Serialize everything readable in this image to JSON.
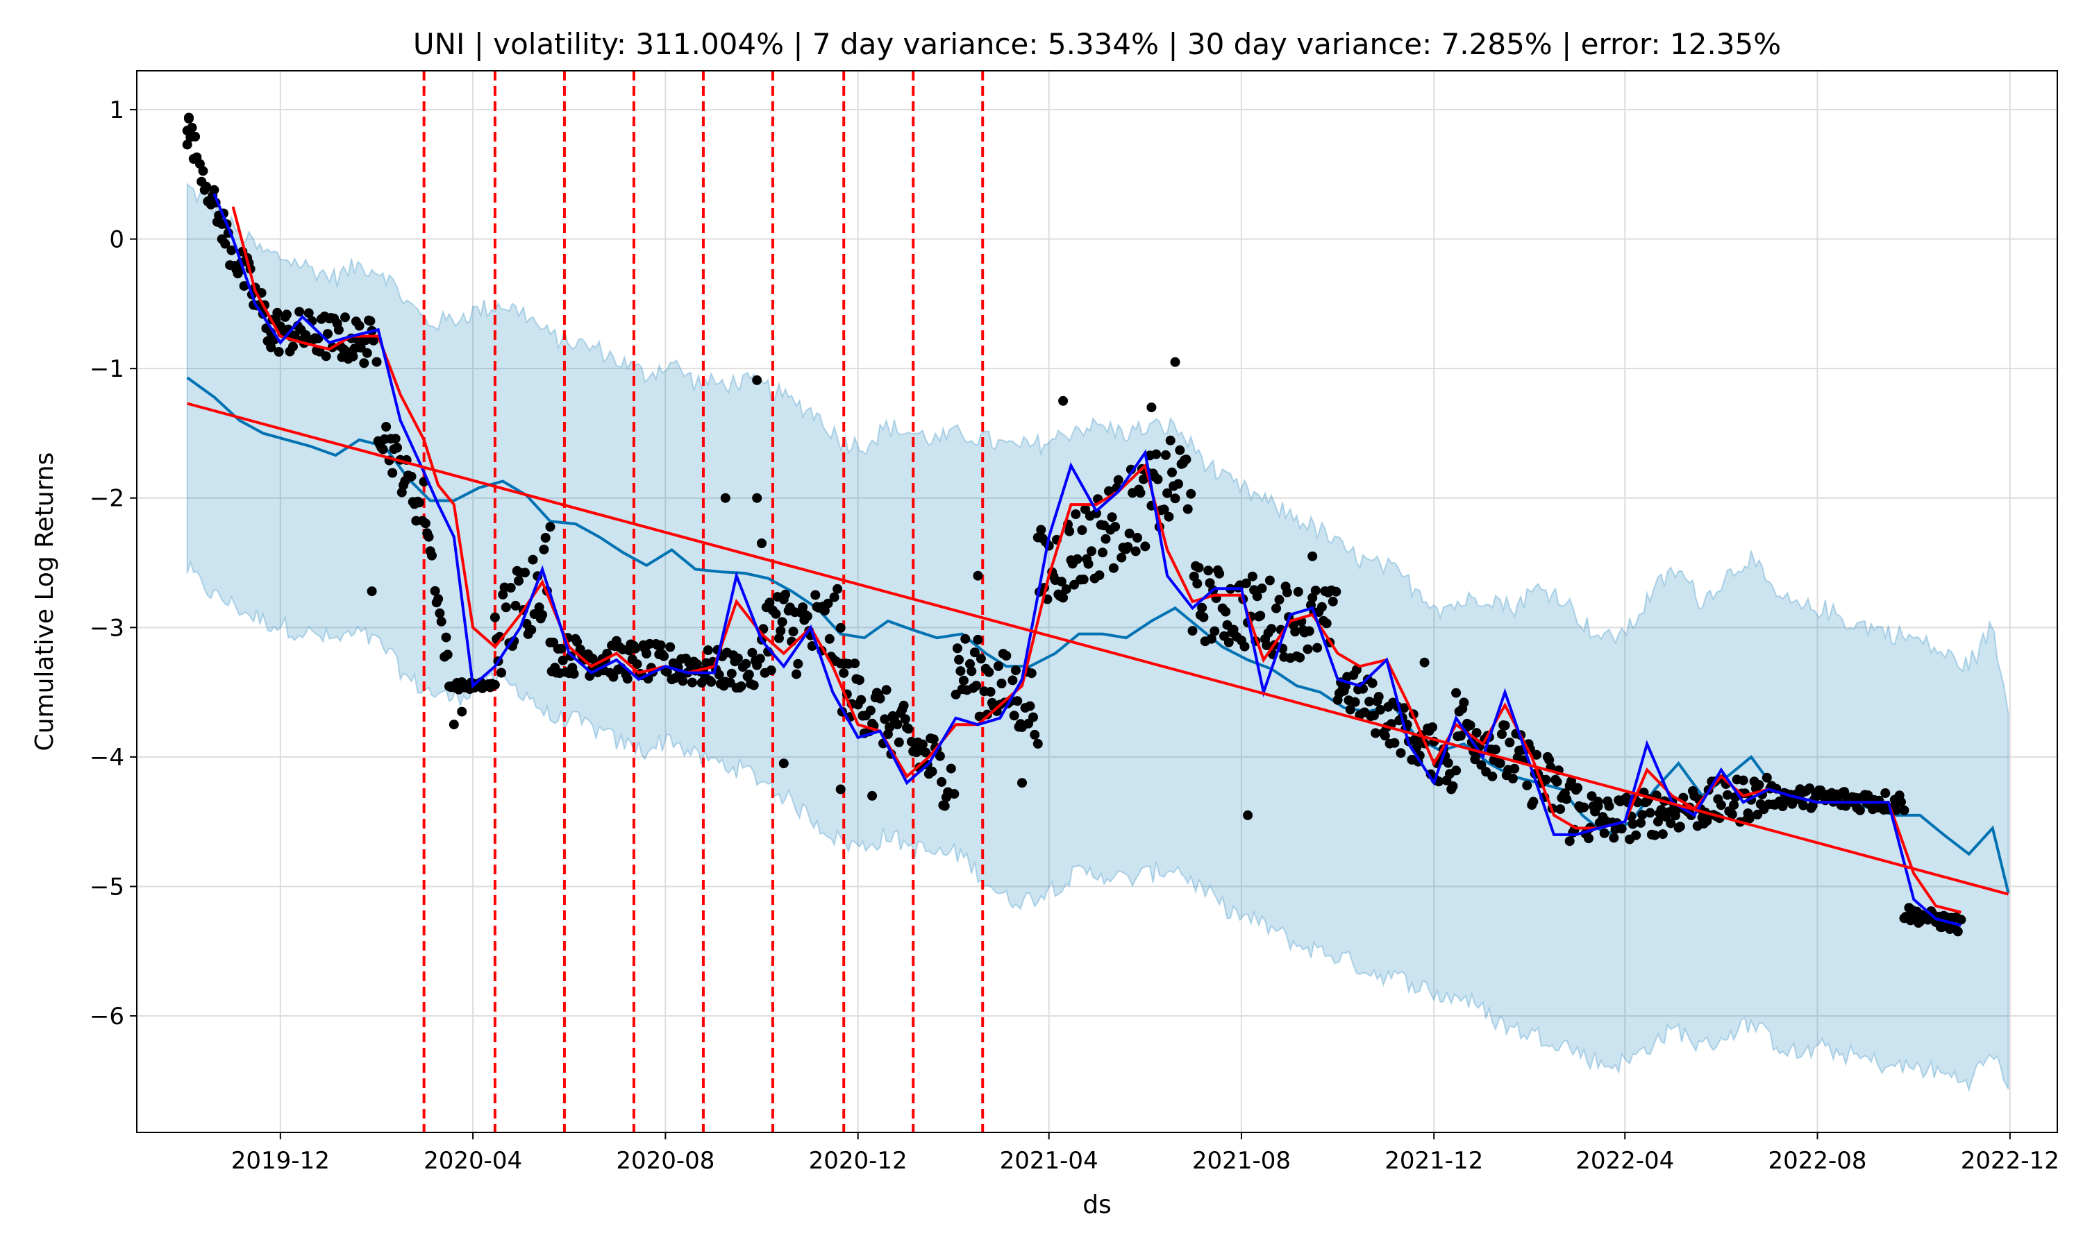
{
  "chart_data": {
    "type": "line",
    "title": "UNI | volatility: 311.004% | 7 day variance: 5.334% | 30 day variance: 7.285% | error: 12.35%",
    "xlabel": "ds",
    "ylabel": "Cumulative Log Returns",
    "xlim": [
      "2019-09-01",
      "2022-12-31"
    ],
    "ylim": [
      -6.9,
      1.3
    ],
    "x_ticks": [
      "2019-12",
      "2020-04",
      "2020-08",
      "2020-12",
      "2021-04",
      "2021-08",
      "2021-12",
      "2022-04",
      "2022-08",
      "2022-12"
    ],
    "y_ticks": [
      {
        "value": 1,
        "label": "1"
      },
      {
        "value": 0,
        "label": "0"
      },
      {
        "value": -1,
        "label": "−1"
      },
      {
        "value": -2,
        "label": "−2"
      },
      {
        "value": -3,
        "label": "−3"
      },
      {
        "value": -4,
        "label": "−4"
      },
      {
        "value": -5,
        "label": "−5"
      },
      {
        "value": -6,
        "label": "−6"
      }
    ],
    "grid": true,
    "colors": {
      "observed": "#000000",
      "forecast": "#0072B2",
      "uncertainty": "#0072B2",
      "trend": "#ff0000",
      "short_ma": "#0000ff",
      "long_ma": "#ff0000",
      "changepoint": "#ff0000",
      "grid": "#dddddd"
    },
    "changepoints": [
      "2020-03-01",
      "2020-04-15",
      "2020-05-29",
      "2020-07-12",
      "2020-08-25",
      "2020-10-08",
      "2020-11-22",
      "2021-01-05",
      "2021-02-18"
    ],
    "trend": {
      "x": [
        "2019-10-03",
        "2022-11-30"
      ],
      "y": [
        -1.27,
        -5.06
      ]
    },
    "forecast": {
      "x": [
        "2019-10-03",
        "2019-10-20",
        "2019-11-05",
        "2019-11-20",
        "2019-12-05",
        "2019-12-20",
        "2020-01-05",
        "2020-01-20",
        "2020-02-05",
        "2020-02-20",
        "2020-03-05",
        "2020-03-20",
        "2020-04-05",
        "2020-04-20",
        "2020-05-05",
        "2020-05-20",
        "2020-06-05",
        "2020-06-20",
        "2020-07-05",
        "2020-07-20",
        "2020-08-05",
        "2020-08-20",
        "2020-09-05",
        "2020-09-20",
        "2020-10-05",
        "2020-10-20",
        "2020-11-05",
        "2020-11-20",
        "2020-12-05",
        "2020-12-20",
        "2021-01-05",
        "2021-01-20",
        "2021-02-05",
        "2021-02-20",
        "2021-03-05",
        "2021-03-20",
        "2021-04-05",
        "2021-04-20",
        "2021-05-05",
        "2021-05-20",
        "2021-06-05",
        "2021-06-20",
        "2021-07-05",
        "2021-07-20",
        "2021-08-05",
        "2021-08-20",
        "2021-09-05",
        "2021-09-20",
        "2021-10-05",
        "2021-10-20",
        "2021-11-05",
        "2021-11-20",
        "2021-12-05",
        "2021-12-20",
        "2022-01-05",
        "2022-01-20",
        "2022-02-05",
        "2022-02-20",
        "2022-03-05",
        "2022-03-20",
        "2022-04-05",
        "2022-04-20",
        "2022-05-05",
        "2022-05-20",
        "2022-06-05",
        "2022-06-20",
        "2022-07-05",
        "2022-07-20",
        "2022-08-05",
        "2022-08-20",
        "2022-09-05",
        "2022-09-20",
        "2022-10-05",
        "2022-10-20",
        "2022-11-05",
        "2022-11-20",
        "2022-11-30"
      ],
      "y": [
        -1.07,
        -1.22,
        -1.4,
        -1.5,
        -1.55,
        -1.6,
        -1.67,
        -1.55,
        -1.6,
        -1.85,
        -2.02,
        -2.02,
        -1.92,
        -1.87,
        -1.98,
        -2.18,
        -2.2,
        -2.3,
        -2.42,
        -2.52,
        -2.4,
        -2.55,
        -2.57,
        -2.58,
        -2.62,
        -2.72,
        -2.85,
        -3.05,
        -3.08,
        -2.95,
        -3.02,
        -3.08,
        -3.05,
        -3.2,
        -3.3,
        -3.3,
        -3.2,
        -3.05,
        -3.05,
        -3.08,
        -2.95,
        -2.85,
        -3.0,
        -3.15,
        -3.25,
        -3.32,
        -3.45,
        -3.5,
        -3.62,
        -3.65,
        -3.6,
        -3.85,
        -3.95,
        -3.9,
        -4.05,
        -4.15,
        -4.2,
        -4.25,
        -4.45,
        -4.6,
        -4.5,
        -4.25,
        -4.05,
        -4.3,
        -4.15,
        -4.0,
        -4.25,
        -4.35,
        -4.3,
        -4.35,
        -4.4,
        -4.45,
        -4.45,
        -4.6,
        -4.75,
        -4.55,
        -5.05
      ],
      "lower": [
        -2.55,
        -2.75,
        -2.85,
        -2.95,
        -3.0,
        -3.05,
        -3.1,
        -3.05,
        -3.15,
        -3.4,
        -3.5,
        -3.55,
        -3.45,
        -3.42,
        -3.5,
        -3.7,
        -3.72,
        -3.8,
        -3.9,
        -3.95,
        -3.85,
        -4.0,
        -4.05,
        -4.1,
        -4.2,
        -4.35,
        -4.5,
        -4.65,
        -4.7,
        -4.6,
        -4.7,
        -4.75,
        -4.75,
        -4.95,
        -5.1,
        -5.1,
        -5.0,
        -4.9,
        -4.9,
        -4.95,
        -4.9,
        -4.85,
        -5.0,
        -5.15,
        -5.25,
        -5.32,
        -5.45,
        -5.5,
        -5.55,
        -5.65,
        -5.7,
        -5.75,
        -5.85,
        -5.85,
        -6.0,
        -6.1,
        -6.15,
        -6.2,
        -6.3,
        -6.38,
        -6.35,
        -6.2,
        -6.1,
        -6.25,
        -6.15,
        -6.05,
        -6.2,
        -6.3,
        -6.25,
        -6.3,
        -6.35,
        -6.4,
        -6.4,
        -6.45,
        -6.5,
        -6.3,
        -6.5
      ],
      "upper": [
        0.4,
        0.25,
        0.05,
        -0.1,
        -0.15,
        -0.22,
        -0.3,
        -0.2,
        -0.25,
        -0.5,
        -0.65,
        -0.62,
        -0.55,
        -0.5,
        -0.58,
        -0.75,
        -0.8,
        -0.85,
        -0.95,
        -1.05,
        -0.95,
        -1.1,
        -1.12,
        -1.1,
        -1.15,
        -1.25,
        -1.35,
        -1.55,
        -1.6,
        -1.45,
        -1.5,
        -1.55,
        -1.5,
        -1.55,
        -1.6,
        -1.6,
        -1.55,
        -1.45,
        -1.45,
        -1.5,
        -1.45,
        -1.45,
        -1.65,
        -1.85,
        -1.95,
        -2.05,
        -2.15,
        -2.25,
        -2.4,
        -2.5,
        -2.55,
        -2.7,
        -2.85,
        -2.8,
        -2.75,
        -2.85,
        -2.7,
        -2.75,
        -2.95,
        -3.1,
        -3.0,
        -2.7,
        -2.55,
        -2.8,
        -2.6,
        -2.45,
        -2.75,
        -2.85,
        -2.85,
        -2.95,
        -3.0,
        -3.05,
        -3.1,
        -3.2,
        -3.3,
        -3.0,
        -3.6
      ]
    },
    "short_ma": {
      "x": [
        "2019-10-20",
        "2019-11-01",
        "2019-11-15",
        "2019-12-01",
        "2019-12-15",
        "2020-01-01",
        "2020-01-15",
        "2020-02-01",
        "2020-02-15",
        "2020-03-01",
        "2020-03-10",
        "2020-03-20",
        "2020-04-01",
        "2020-04-15",
        "2020-05-01",
        "2020-05-15",
        "2020-06-01",
        "2020-06-15",
        "2020-07-01",
        "2020-07-15",
        "2020-08-01",
        "2020-08-15",
        "2020-09-01",
        "2020-09-15",
        "2020-10-01",
        "2020-10-15",
        "2020-11-01",
        "2020-11-15",
        "2020-12-01",
        "2020-12-15",
        "2021-01-01",
        "2021-01-15",
        "2021-02-01",
        "2021-02-15",
        "2021-03-01",
        "2021-03-15",
        "2021-04-01",
        "2021-04-15",
        "2021-05-01",
        "2021-05-15",
        "2021-06-01",
        "2021-06-15",
        "2021-07-01",
        "2021-07-15",
        "2021-08-01",
        "2021-08-15",
        "2021-09-01",
        "2021-09-15",
        "2021-10-01",
        "2021-10-15",
        "2021-11-01",
        "2021-11-15",
        "2021-12-01",
        "2021-12-15",
        "2022-01-01",
        "2022-01-15",
        "2022-02-01",
        "2022-02-15",
        "2022-03-01",
        "2022-03-15",
        "2022-04-01",
        "2022-04-15",
        "2022-05-01",
        "2022-05-15",
        "2022-06-01",
        "2022-06-15",
        "2022-07-01",
        "2022-07-15",
        "2022-08-01",
        "2022-08-15",
        "2022-09-01",
        "2022-09-15",
        "2022-10-01",
        "2022-10-15",
        "2022-10-31"
      ],
      "y": [
        0.35,
        0.0,
        -0.5,
        -0.8,
        -0.6,
        -0.8,
        -0.75,
        -0.7,
        -1.4,
        -1.8,
        -2.05,
        -2.3,
        -3.45,
        -3.3,
        -3.0,
        -2.55,
        -3.2,
        -3.35,
        -3.25,
        -3.4,
        -3.3,
        -3.35,
        -3.35,
        -2.6,
        -3.1,
        -3.3,
        -3.0,
        -3.5,
        -3.85,
        -3.8,
        -4.2,
        -4.05,
        -3.7,
        -3.75,
        -3.7,
        -3.4,
        -2.3,
        -1.75,
        -2.1,
        -1.95,
        -1.65,
        -2.6,
        -2.85,
        -2.7,
        -2.7,
        -3.5,
        -2.9,
        -2.85,
        -3.4,
        -3.45,
        -3.25,
        -3.9,
        -4.2,
        -3.7,
        -4.0,
        -3.5,
        -4.1,
        -4.6,
        -4.6,
        -4.55,
        -4.5,
        -3.9,
        -4.35,
        -4.45,
        -4.1,
        -4.35,
        -4.25,
        -4.3,
        -4.35,
        -4.35,
        -4.35,
        -4.35,
        -5.1,
        -5.25,
        -5.3
      ]
    },
    "long_ma": {
      "x": [
        "2019-11-01",
        "2019-11-15",
        "2019-12-01",
        "2019-12-15",
        "2020-01-01",
        "2020-01-15",
        "2020-02-01",
        "2020-02-15",
        "2020-03-01",
        "2020-03-10",
        "2020-03-20",
        "2020-04-01",
        "2020-04-15",
        "2020-05-01",
        "2020-05-15",
        "2020-06-01",
        "2020-06-15",
        "2020-07-01",
        "2020-07-15",
        "2020-08-01",
        "2020-08-15",
        "2020-09-01",
        "2020-09-15",
        "2020-10-01",
        "2020-10-15",
        "2020-11-01",
        "2020-11-15",
        "2020-12-01",
        "2020-12-15",
        "2021-01-01",
        "2021-01-15",
        "2021-02-01",
        "2021-02-15",
        "2021-03-01",
        "2021-03-15",
        "2021-04-01",
        "2021-04-15",
        "2021-05-01",
        "2021-05-15",
        "2021-06-01",
        "2021-06-15",
        "2021-07-01",
        "2021-07-15",
        "2021-08-01",
        "2021-08-15",
        "2021-09-01",
        "2021-09-15",
        "2021-10-01",
        "2021-10-15",
        "2021-11-01",
        "2021-11-15",
        "2021-12-01",
        "2021-12-15",
        "2022-01-01",
        "2022-01-15",
        "2022-02-01",
        "2022-02-15",
        "2022-03-01",
        "2022-03-15",
        "2022-04-01",
        "2022-04-15",
        "2022-05-01",
        "2022-05-15",
        "2022-06-01",
        "2022-06-15",
        "2022-07-01",
        "2022-07-15",
        "2022-08-01",
        "2022-08-15",
        "2022-09-01",
        "2022-09-15",
        "2022-10-01",
        "2022-10-15",
        "2022-10-31"
      ],
      "y": [
        0.25,
        -0.4,
        -0.75,
        -0.8,
        -0.85,
        -0.75,
        -0.75,
        -1.2,
        -1.55,
        -1.9,
        -2.05,
        -3.0,
        -3.15,
        -2.9,
        -2.65,
        -3.15,
        -3.3,
        -3.2,
        -3.35,
        -3.3,
        -3.35,
        -3.3,
        -2.8,
        -3.05,
        -3.2,
        -3.0,
        -3.3,
        -3.75,
        -3.8,
        -4.15,
        -4.0,
        -3.75,
        -3.75,
        -3.6,
        -3.45,
        -2.6,
        -2.05,
        -2.05,
        -1.95,
        -1.75,
        -2.4,
        -2.8,
        -2.75,
        -2.75,
        -3.25,
        -2.95,
        -2.9,
        -3.2,
        -3.3,
        -3.25,
        -3.6,
        -4.05,
        -3.75,
        -3.9,
        -3.6,
        -4.0,
        -4.45,
        -4.55,
        -4.55,
        -4.5,
        -4.1,
        -4.3,
        -4.4,
        -4.15,
        -4.3,
        -4.25,
        -4.3,
        -4.35,
        -4.35,
        -4.35,
        -4.35,
        -4.9,
        -5.15,
        -5.2
      ]
    },
    "observed_clusters": [
      {
        "x0": "2019-10-03",
        "x1": "2019-10-25",
        "y0": 0.9,
        "y1": 0.1,
        "spread": 0.12
      },
      {
        "x0": "2019-10-25",
        "x1": "2019-11-25",
        "y0": 0.1,
        "y1": -0.7,
        "spread": 0.18
      },
      {
        "x0": "2019-11-25",
        "x1": "2020-01-31",
        "y0": -0.7,
        "y1": -0.8,
        "spread": 0.18
      },
      {
        "x0": "2020-02-01",
        "x1": "2020-02-29",
        "y0": -1.4,
        "y1": -2.1,
        "spread": 0.18
      },
      {
        "x0": "2020-03-01",
        "x1": "2020-03-20",
        "y0": -2.0,
        "y1": -3.6,
        "spread": 0.15
      },
      {
        "x0": "2020-03-20",
        "x1": "2020-04-15",
        "y0": -3.45,
        "y1": -3.45,
        "spread": 0.03
      },
      {
        "x0": "2020-04-15",
        "x1": "2020-05-20",
        "y0": -3.1,
        "y1": -2.5,
        "spread": 0.35
      },
      {
        "x0": "2020-05-20",
        "x1": "2020-09-30",
        "y0": -3.2,
        "y1": -3.35,
        "spread": 0.15
      },
      {
        "x0": "2020-10-01",
        "x1": "2020-11-20",
        "y0": -3.0,
        "y1": -3.05,
        "spread": 0.35
      },
      {
        "x0": "2020-11-20",
        "x1": "2021-01-31",
        "y0": -3.4,
        "y1": -4.2,
        "spread": 0.25
      },
      {
        "x0": "2021-02-01",
        "x1": "2021-03-25",
        "y0": -3.3,
        "y1": -3.6,
        "spread": 0.3
      },
      {
        "x0": "2021-03-25",
        "x1": "2021-06-30",
        "y0": -2.6,
        "y1": -1.8,
        "spread": 0.35
      },
      {
        "x0": "2021-07-01",
        "x1": "2021-09-30",
        "y0": -2.8,
        "y1": -3.0,
        "spread": 0.3
      },
      {
        "x0": "2021-10-01",
        "x1": "2021-12-15",
        "y0": -3.4,
        "y1": -4.1,
        "spread": 0.2
      },
      {
        "x0": "2021-12-15",
        "x1": "2022-03-15",
        "y0": -3.7,
        "y1": -4.5,
        "spread": 0.25
      },
      {
        "x0": "2022-03-15",
        "x1": "2022-06-30",
        "y0": -4.5,
        "y1": -4.3,
        "spread": 0.18
      },
      {
        "x0": "2022-07-01",
        "x1": "2022-09-25",
        "y0": -4.3,
        "y1": -4.35,
        "spread": 0.08
      },
      {
        "x0": "2022-09-25",
        "x1": "2022-10-31",
        "y0": -5.2,
        "y1": -5.3,
        "spread": 0.06
      }
    ],
    "observed_outliers": [
      {
        "x": "2019-10-04",
        "y": 0.93
      },
      {
        "x": "2019-10-03",
        "y": 0.73
      },
      {
        "x": "2020-01-28",
        "y": -2.72
      },
      {
        "x": "2020-03-25",
        "y": -3.65
      },
      {
        "x": "2020-09-08",
        "y": -2.0
      },
      {
        "x": "2020-09-28",
        "y": -1.09
      },
      {
        "x": "2020-09-28",
        "y": -2.0
      },
      {
        "x": "2020-10-01",
        "y": -2.35
      },
      {
        "x": "2020-10-15",
        "y": -4.05
      },
      {
        "x": "2020-11-20",
        "y": -4.25
      },
      {
        "x": "2020-12-10",
        "y": -4.3
      },
      {
        "x": "2021-03-15",
        "y": -4.2
      },
      {
        "x": "2021-02-15",
        "y": -2.6
      },
      {
        "x": "2021-06-20",
        "y": -0.95
      },
      {
        "x": "2021-06-05",
        "y": -1.3
      },
      {
        "x": "2021-04-10",
        "y": -1.25
      },
      {
        "x": "2021-08-05",
        "y": -4.45
      },
      {
        "x": "2021-09-15",
        "y": -2.45
      },
      {
        "x": "2021-11-25",
        "y": -3.27
      },
      {
        "x": "2022-02-25",
        "y": -4.65
      }
    ]
  }
}
